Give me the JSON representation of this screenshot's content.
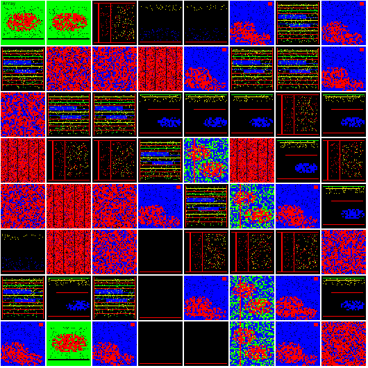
{
  "grid": {
    "rows": 8,
    "cols": 8
  },
  "palette": {
    "black": "#000000",
    "red": "#ff0000",
    "blue": "#0000ff",
    "green": "#00ff00",
    "yellow": "#ffff00",
    "white": "#ffffff"
  },
  "tiles": [
    {
      "kind": "greenfield",
      "label": "Array"
    },
    {
      "kind": "greenfield",
      "label": ""
    },
    {
      "kind": "columns"
    },
    {
      "kind": "blackdots"
    },
    {
      "kind": "blackdots"
    },
    {
      "kind": "blue_red"
    },
    {
      "kind": "stripes"
    },
    {
      "kind": "blue_red"
    },
    {
      "kind": "stripes"
    },
    {
      "kind": "red"
    },
    {
      "kind": "red_blue"
    },
    {
      "kind": "columns_red"
    },
    {
      "kind": "blue_red"
    },
    {
      "kind": "stripes"
    },
    {
      "kind": "stripes"
    },
    {
      "kind": "blue_red"
    },
    {
      "kind": "red_blue"
    },
    {
      "kind": "stripes"
    },
    {
      "kind": "stripes"
    },
    {
      "kind": "game_black"
    },
    {
      "kind": "game_black"
    },
    {
      "kind": "game_black"
    },
    {
      "kind": "columns"
    },
    {
      "kind": "game_black"
    },
    {
      "kind": "columns_red"
    },
    {
      "kind": "columns"
    },
    {
      "kind": "columns"
    },
    {
      "kind": "stripes"
    },
    {
      "kind": "mixed"
    },
    {
      "kind": "columns_red"
    },
    {
      "kind": "game_black"
    },
    {
      "kind": "columns"
    },
    {
      "kind": "red"
    },
    {
      "kind": "columns_red"
    },
    {
      "kind": "red"
    },
    {
      "kind": "blue_red"
    },
    {
      "kind": "stripes"
    },
    {
      "kind": "mixed"
    },
    {
      "kind": "blue_red"
    },
    {
      "kind": "game_black"
    },
    {
      "kind": "blackdots"
    },
    {
      "kind": "columns_red"
    },
    {
      "kind": "red_blue"
    },
    {
      "kind": "black"
    },
    {
      "kind": "columns"
    },
    {
      "kind": "columns"
    },
    {
      "kind": "columns"
    },
    {
      "kind": "red_blue"
    },
    {
      "kind": "stripes"
    },
    {
      "kind": "game_black"
    },
    {
      "kind": "stripes"
    },
    {
      "kind": "black"
    },
    {
      "kind": "blue_red"
    },
    {
      "kind": "mixed"
    },
    {
      "kind": "blue_red"
    },
    {
      "kind": "game_black"
    },
    {
      "kind": "blue_red"
    },
    {
      "kind": "greenfield",
      "label": ""
    },
    {
      "kind": "blue_red"
    },
    {
      "kind": "black"
    },
    {
      "kind": "black"
    },
    {
      "kind": "mixed"
    },
    {
      "kind": "blue_red"
    },
    {
      "kind": "red"
    }
  ]
}
